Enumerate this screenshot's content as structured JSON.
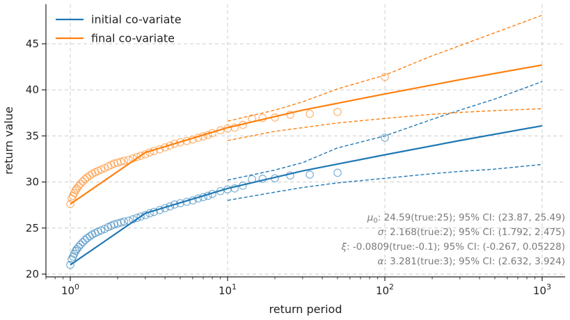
{
  "chart_data": {
    "type": "line",
    "xscale": "log",
    "xlabel": "return period",
    "ylabel": "return value",
    "xlim": [
      0.7,
      1400
    ],
    "ylim": [
      19.7,
      49.3
    ],
    "grid": true,
    "legend_position": "top-left",
    "x_ticks": [
      {
        "value": 1,
        "base": "10",
        "exp": "0"
      },
      {
        "value": 10,
        "base": "10",
        "exp": "1"
      },
      {
        "value": 100,
        "base": "10",
        "exp": "2"
      },
      {
        "value": 1000,
        "base": "10",
        "exp": "3"
      }
    ],
    "y_ticks": [
      20,
      25,
      30,
      35,
      40,
      45
    ],
    "series": [
      {
        "name": "initial co-variate",
        "color": "#1f77b4",
        "fit": {
          "x": [
            1,
            3,
            10,
            30,
            100,
            300,
            1000
          ],
          "y": [
            21.0,
            26.6,
            29.3,
            31.2,
            32.95,
            34.5,
            36.1
          ]
        },
        "upper_ci": {
          "x": [
            10,
            20,
            30,
            50,
            100,
            200,
            300,
            500,
            1000
          ],
          "y": [
            30.2,
            31.3,
            32.1,
            33.7,
            35.0,
            36.8,
            37.8,
            39.0,
            40.9
          ]
        },
        "lower_ci": {
          "x": [
            10,
            20,
            30,
            50,
            100,
            200,
            300,
            500,
            1000
          ],
          "y": [
            28.0,
            28.9,
            29.4,
            29.9,
            30.4,
            30.9,
            31.15,
            31.4,
            31.9
          ]
        },
        "empirical": {
          "x": [
            1.0,
            1.02,
            1.04,
            1.06,
            1.08,
            1.1,
            1.13,
            1.16,
            1.2,
            1.24,
            1.28,
            1.33,
            1.38,
            1.44,
            1.5,
            1.57,
            1.65,
            1.74,
            1.82,
            1.9,
            2.0,
            2.1,
            2.2,
            2.35,
            2.5,
            2.65,
            2.8,
            3.0,
            3.2,
            3.4,
            3.7,
            4.0,
            4.3,
            4.6,
            5.0,
            5.5,
            6.0,
            6.5,
            7.0,
            7.5,
            8.0,
            9.0,
            10.0,
            11.1,
            12.5,
            14.3,
            16.7,
            20.0,
            25.0,
            33.3,
            50.0,
            100.0
          ],
          "y": [
            21.0,
            21.6,
            21.9,
            22.2,
            22.5,
            22.7,
            22.95,
            23.2,
            23.45,
            23.7,
            23.9,
            24.1,
            24.3,
            24.45,
            24.6,
            24.75,
            24.9,
            25.1,
            25.25,
            25.4,
            25.5,
            25.6,
            25.7,
            25.8,
            25.95,
            26.1,
            26.25,
            26.4,
            26.6,
            26.75,
            26.95,
            27.15,
            27.35,
            27.55,
            27.7,
            27.85,
            28.0,
            28.2,
            28.35,
            28.5,
            28.7,
            29.0,
            29.2,
            29.3,
            29.6,
            30.3,
            30.35,
            30.4,
            30.7,
            30.8,
            31.0,
            34.8
          ]
        }
      },
      {
        "name": "final co-variate",
        "color": "#ff7f0e",
        "fit": {
          "x": [
            1,
            3,
            10,
            30,
            100,
            300,
            1000
          ],
          "y": [
            27.6,
            33.2,
            35.9,
            37.8,
            39.55,
            41.1,
            42.7
          ]
        },
        "upper_ci": {
          "x": [
            10,
            20,
            30,
            50,
            100,
            200,
            300,
            500,
            1000
          ],
          "y": [
            36.6,
            37.8,
            38.7,
            40.1,
            41.6,
            43.7,
            44.8,
            46.2,
            48.1
          ]
        },
        "lower_ci": {
          "x": [
            10,
            20,
            30,
            50,
            100,
            200,
            300,
            500,
            1000
          ],
          "y": [
            34.5,
            35.5,
            35.9,
            36.4,
            36.9,
            37.35,
            37.55,
            37.75,
            37.95
          ]
        },
        "empirical": {
          "x": [
            1.0,
            1.02,
            1.04,
            1.06,
            1.08,
            1.1,
            1.13,
            1.16,
            1.2,
            1.24,
            1.28,
            1.33,
            1.38,
            1.44,
            1.5,
            1.57,
            1.65,
            1.74,
            1.82,
            1.9,
            2.0,
            2.1,
            2.2,
            2.35,
            2.5,
            2.65,
            2.8,
            3.0,
            3.2,
            3.4,
            3.7,
            4.0,
            4.3,
            4.6,
            5.0,
            5.5,
            6.0,
            6.5,
            7.0,
            7.5,
            8.0,
            9.0,
            10.0,
            11.1,
            12.5,
            14.3,
            16.7,
            20.0,
            25.0,
            33.3,
            50.0,
            100.0
          ],
          "y": [
            27.6,
            28.2,
            28.5,
            28.8,
            29.1,
            29.3,
            29.55,
            29.8,
            30.05,
            30.3,
            30.5,
            30.7,
            30.9,
            31.05,
            31.2,
            31.35,
            31.5,
            31.7,
            31.85,
            32.0,
            32.1,
            32.2,
            32.3,
            32.4,
            32.55,
            32.7,
            32.85,
            33.0,
            33.2,
            33.35,
            33.55,
            33.75,
            33.95,
            34.15,
            34.3,
            34.45,
            34.6,
            34.8,
            34.95,
            35.1,
            35.3,
            35.6,
            35.8,
            35.9,
            36.2,
            36.9,
            36.95,
            37.0,
            37.3,
            37.4,
            37.6,
            41.4
          ]
        }
      }
    ],
    "annotations": [
      {
        "symbol": "μ",
        "subscript": "0",
        "text": ": 24.59(true:25); 95% CI: (23.87, 25.49)"
      },
      {
        "symbol": "σ",
        "subscript": "",
        "text": ": 2.168(true:2); 95% CI: (1.792, 2.475)"
      },
      {
        "symbol": "ξ",
        "subscript": "",
        "text": ": -0.0809(true:-0.1); 95% CI: (-0.267, 0.05228)"
      },
      {
        "symbol": "α",
        "subscript": "",
        "text": ": 3.281(true:3); 95% CI: (2.632, 3.924)"
      }
    ]
  }
}
